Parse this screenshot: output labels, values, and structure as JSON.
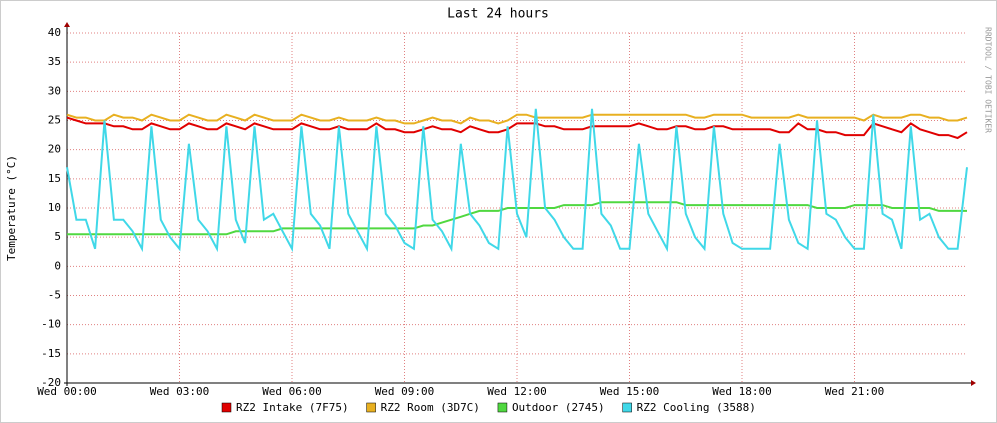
{
  "chart_data": {
    "type": "line",
    "title": "Last 24 hours",
    "y_label": "Temperature (°C)",
    "side_label": "RRDTOOL / TOBI OETIKER",
    "x": [
      0,
      0.25,
      0.5,
      0.75,
      1,
      1.25,
      1.5,
      1.75,
      2,
      2.25,
      2.5,
      2.75,
      3,
      3.25,
      3.5,
      3.75,
      4,
      4.25,
      4.5,
      4.75,
      5,
      5.25,
      5.5,
      5.75,
      6,
      6.25,
      6.5,
      6.75,
      7,
      7.25,
      7.5,
      7.75,
      8,
      8.25,
      8.5,
      8.75,
      9,
      9.25,
      9.5,
      9.75,
      10,
      10.25,
      10.5,
      10.75,
      11,
      11.25,
      11.5,
      11.75,
      12,
      12.25,
      12.5,
      12.75,
      13,
      13.25,
      13.5,
      13.75,
      14,
      14.25,
      14.5,
      14.75,
      15,
      15.25,
      15.5,
      15.75,
      16,
      16.25,
      16.5,
      16.75,
      17,
      17.25,
      17.5,
      17.75,
      18,
      18.25,
      18.5,
      18.75,
      19,
      19.25,
      19.5,
      19.75,
      20,
      20.25,
      20.5,
      20.75,
      21,
      21.25,
      21.5,
      21.75,
      22,
      22.25,
      22.5,
      22.75,
      23,
      23.25,
      23.5,
      23.75,
      24
    ],
    "xlim": [
      0,
      24
    ],
    "xticks": [
      {
        "value": 0,
        "label": "Wed 00:00"
      },
      {
        "value": 3,
        "label": "Wed 03:00"
      },
      {
        "value": 6,
        "label": "Wed 06:00"
      },
      {
        "value": 9,
        "label": "Wed 09:00"
      },
      {
        "value": 12,
        "label": "Wed 12:00"
      },
      {
        "value": 15,
        "label": "Wed 15:00"
      },
      {
        "value": 18,
        "label": "Wed 18:00"
      },
      {
        "value": 21,
        "label": "Wed 21:00"
      }
    ],
    "ylim": [
      -20,
      40
    ],
    "yticks": [
      -20,
      -15,
      -10,
      -5,
      0,
      5,
      10,
      15,
      20,
      25,
      30,
      35,
      40
    ],
    "grid": true,
    "legend": "bottom",
    "series": [
      {
        "name": "RZ2 Intake (7F75)",
        "color": "#e00000",
        "values": [
          25.5,
          25,
          24.5,
          24.5,
          24.5,
          24,
          24,
          23.5,
          23.5,
          24.5,
          24,
          23.5,
          23.5,
          24.5,
          24,
          23.5,
          23.5,
          24.5,
          24,
          23.5,
          24.5,
          24,
          23.5,
          23.5,
          23.5,
          24.5,
          24,
          23.5,
          23.5,
          24,
          23.5,
          23.5,
          23.5,
          24.5,
          23.5,
          23.5,
          23,
          23,
          23.5,
          24,
          23.5,
          23.5,
          23,
          24,
          23.5,
          23,
          23,
          23.5,
          24.5,
          24.5,
          24.5,
          24,
          24,
          23.5,
          23.5,
          23.5,
          24,
          24,
          24,
          24,
          24,
          24.5,
          24,
          23.5,
          23.5,
          24,
          24,
          23.5,
          23.5,
          24,
          24,
          23.5,
          23.5,
          23.5,
          23.5,
          23.5,
          23,
          23,
          24.5,
          23.5,
          23.5,
          23,
          23,
          22.5,
          22.5,
          22.5,
          24.5,
          24,
          23.5,
          23,
          24.5,
          23.5,
          23,
          22.5,
          22.5,
          22,
          23
        ]
      },
      {
        "name": "RZ2 Room (3D7C)",
        "color": "#e8b020",
        "values": [
          26,
          25.5,
          25.5,
          25,
          25,
          26,
          25.5,
          25.5,
          25,
          26,
          25.5,
          25,
          25,
          26,
          25.5,
          25,
          25,
          26,
          25.5,
          25,
          26,
          25.5,
          25,
          25,
          25,
          26,
          25.5,
          25,
          25,
          25.5,
          25,
          25,
          25,
          25.5,
          25,
          25,
          24.5,
          24.5,
          25,
          25.5,
          25,
          25,
          24.5,
          25.5,
          25,
          25,
          24.5,
          25,
          26,
          26,
          25.5,
          25.5,
          25.5,
          25.5,
          25.5,
          25.5,
          26,
          26,
          26,
          26,
          26,
          26,
          26,
          26,
          26,
          26,
          26,
          25.5,
          25.5,
          26,
          26,
          26,
          26,
          25.5,
          25.5,
          25.5,
          25.5,
          25.5,
          26,
          25.5,
          25.5,
          25.5,
          25.5,
          25.5,
          25.5,
          25,
          26,
          25.5,
          25.5,
          25.5,
          26,
          26,
          25.5,
          25.5,
          25,
          25,
          25.5
        ]
      },
      {
        "name": "Outdoor (2745)",
        "color": "#50d840",
        "values": [
          5.5,
          5.5,
          5.5,
          5.5,
          5.5,
          5.5,
          5.5,
          5.5,
          5.5,
          5.5,
          5.5,
          5.5,
          5.5,
          5.5,
          5.5,
          5.5,
          5.5,
          5.5,
          6,
          6,
          6,
          6,
          6,
          6.5,
          6.5,
          6.5,
          6.5,
          6.5,
          6.5,
          6.5,
          6.5,
          6.5,
          6.5,
          6.5,
          6.5,
          6.5,
          6.5,
          6.5,
          7,
          7,
          7.5,
          8,
          8.5,
          9,
          9.5,
          9.5,
          9.5,
          10,
          10,
          10,
          10,
          10,
          10,
          10.5,
          10.5,
          10.5,
          10.5,
          11,
          11,
          11,
          11,
          11,
          11,
          11,
          11,
          11,
          10.5,
          10.5,
          10.5,
          10.5,
          10.5,
          10.5,
          10.5,
          10.5,
          10.5,
          10.5,
          10.5,
          10.5,
          10.5,
          10.5,
          10,
          10,
          10,
          10,
          10.5,
          10.5,
          10.5,
          10.5,
          10,
          10,
          10,
          10,
          10,
          9.5,
          9.5,
          9.5,
          9.5
        ]
      },
      {
        "name": "RZ2 Cooling (3588)",
        "color": "#40d8e8",
        "values": [
          17,
          8,
          8,
          3,
          25,
          8,
          8,
          6,
          3,
          24,
          8,
          5,
          3,
          21,
          8,
          6,
          3,
          24,
          8,
          4,
          24,
          8,
          9,
          6,
          3,
          24,
          9,
          7,
          3,
          24,
          9,
          6,
          3,
          24,
          9,
          7,
          4,
          3,
          24,
          8,
          6,
          3,
          21,
          9,
          7,
          4,
          3,
          24,
          9,
          5,
          27,
          10,
          8,
          5,
          3,
          3,
          27,
          9,
          7,
          3,
          3,
          21,
          9,
          6,
          3,
          24,
          9,
          5,
          3,
          24,
          9,
          4,
          3,
          3,
          3,
          3,
          21,
          8,
          4,
          3,
          25,
          9,
          8,
          5,
          3,
          3,
          26,
          9,
          8,
          3,
          24,
          8,
          9,
          5,
          3,
          3,
          17
        ]
      }
    ]
  }
}
